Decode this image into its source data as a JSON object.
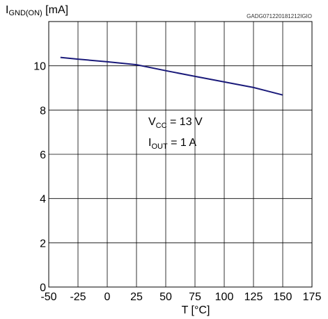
{
  "chart_data": {
    "type": "line",
    "y_title": {
      "main": "I",
      "sub": "GND(ON)",
      "unit": " [mA]"
    },
    "x_title": "T [°C]",
    "reference_code": "GADG071220181212IGIO",
    "annotations": [
      {
        "main": "V",
        "sub": "CC",
        "rest": " = 13 V"
      },
      {
        "main": "I",
        "sub": "OUT",
        "rest": " = 1 A"
      }
    ],
    "x_range": [
      -50,
      175
    ],
    "y_range": [
      0,
      12
    ],
    "x_ticks": [
      -50,
      -25,
      0,
      25,
      50,
      75,
      100,
      125,
      150,
      175
    ],
    "y_ticks": [
      0,
      2,
      4,
      6,
      8,
      10
    ],
    "grid": true,
    "line_color": "#1a1a7a",
    "series": [
      {
        "x": [
          -40,
          -25,
          0,
          25,
          50,
          75,
          100,
          125,
          150
        ],
        "y": [
          10.38,
          10.3,
          10.18,
          10.05,
          9.78,
          9.52,
          9.27,
          9.02,
          8.68
        ]
      }
    ]
  }
}
